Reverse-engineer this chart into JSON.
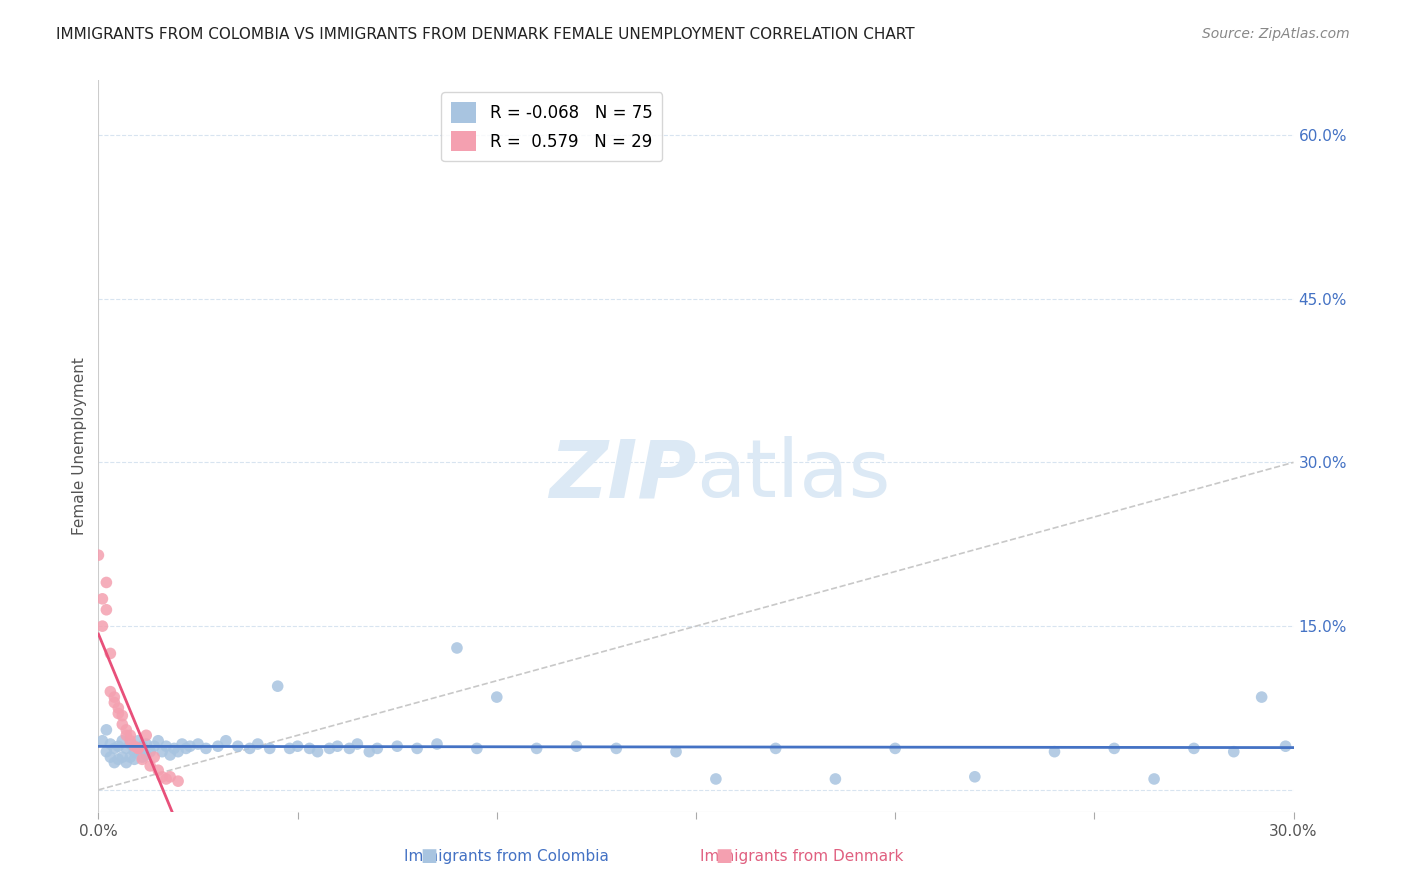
{
  "title": "IMMIGRANTS FROM COLOMBIA VS IMMIGRANTS FROM DENMARK FEMALE UNEMPLOYMENT CORRELATION CHART",
  "source": "Source: ZipAtlas.com",
  "ylabel_label": "Female Unemployment",
  "right_yticks": [
    0.0,
    0.15,
    0.3,
    0.45,
    0.6
  ],
  "right_ytick_labels": [
    "",
    "15.0%",
    "30.0%",
    "45.0%",
    "60.0%"
  ],
  "xlim": [
    0.0,
    0.3
  ],
  "ylim": [
    -0.02,
    0.65
  ],
  "colombia_R": -0.068,
  "colombia_N": 75,
  "denmark_R": 0.579,
  "denmark_N": 29,
  "colombia_color": "#a8c4e0",
  "denmark_color": "#f4a0b0",
  "colombia_line_color": "#4472c4",
  "denmark_line_color": "#e8507a",
  "title_fontsize": 11,
  "source_fontsize": 10,
  "background_color": "#ffffff",
  "watermark_color": "#dce9f5",
  "colombia_x": [
    0.001,
    0.002,
    0.002,
    0.003,
    0.003,
    0.004,
    0.004,
    0.005,
    0.005,
    0.006,
    0.006,
    0.007,
    0.007,
    0.008,
    0.008,
    0.009,
    0.009,
    0.01,
    0.01,
    0.011,
    0.011,
    0.012,
    0.012,
    0.013,
    0.014,
    0.015,
    0.016,
    0.017,
    0.018,
    0.019,
    0.02,
    0.021,
    0.022,
    0.023,
    0.025,
    0.027,
    0.03,
    0.032,
    0.035,
    0.038,
    0.04,
    0.043,
    0.045,
    0.048,
    0.05,
    0.053,
    0.055,
    0.058,
    0.06,
    0.063,
    0.065,
    0.068,
    0.07,
    0.075,
    0.08,
    0.085,
    0.09,
    0.095,
    0.1,
    0.11,
    0.12,
    0.13,
    0.145,
    0.155,
    0.17,
    0.185,
    0.2,
    0.22,
    0.24,
    0.255,
    0.265,
    0.275,
    0.285,
    0.292,
    0.298
  ],
  "colombia_y": [
    0.045,
    0.035,
    0.055,
    0.03,
    0.042,
    0.025,
    0.038,
    0.028,
    0.04,
    0.03,
    0.045,
    0.025,
    0.038,
    0.03,
    0.042,
    0.028,
    0.035,
    0.038,
    0.045,
    0.03,
    0.04,
    0.032,
    0.042,
    0.035,
    0.04,
    0.045,
    0.035,
    0.04,
    0.032,
    0.038,
    0.035,
    0.042,
    0.038,
    0.04,
    0.042,
    0.038,
    0.04,
    0.045,
    0.04,
    0.038,
    0.042,
    0.038,
    0.095,
    0.038,
    0.04,
    0.038,
    0.035,
    0.038,
    0.04,
    0.038,
    0.042,
    0.035,
    0.038,
    0.04,
    0.038,
    0.042,
    0.13,
    0.038,
    0.085,
    0.038,
    0.04,
    0.038,
    0.035,
    0.01,
    0.038,
    0.01,
    0.038,
    0.012,
    0.035,
    0.038,
    0.01,
    0.038,
    0.035,
    0.085,
    0.04
  ],
  "denmark_x": [
    0.0,
    0.001,
    0.001,
    0.002,
    0.002,
    0.003,
    0.003,
    0.004,
    0.004,
    0.005,
    0.005,
    0.006,
    0.006,
    0.007,
    0.007,
    0.008,
    0.008,
    0.009,
    0.01,
    0.01,
    0.011,
    0.012,
    0.013,
    0.014,
    0.015,
    0.016,
    0.017,
    0.018,
    0.02
  ],
  "denmark_y": [
    0.215,
    0.175,
    0.15,
    0.165,
    0.19,
    0.125,
    0.09,
    0.085,
    0.08,
    0.075,
    0.07,
    0.068,
    0.06,
    0.055,
    0.05,
    0.05,
    0.045,
    0.04,
    0.038,
    0.038,
    0.028,
    0.05,
    0.022,
    0.03,
    0.018,
    0.012,
    0.01,
    0.012,
    0.008
  ]
}
